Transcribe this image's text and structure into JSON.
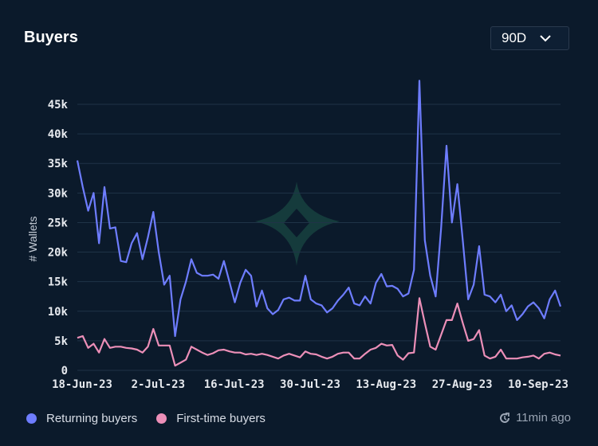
{
  "header": {
    "title": "Buyers",
    "range_label": "90D"
  },
  "footer": {
    "updated": "11min ago"
  },
  "colors": {
    "background": "#0b1a2b",
    "returning": "#6e7dff",
    "first_time": "#ec8fb8",
    "watermark": "#153b3c"
  },
  "icons": {
    "range_dropdown": "chevron-down-icon",
    "updated": "clock-refresh-icon",
    "watermark": "four-point-star-logo"
  },
  "chart_data": {
    "type": "line",
    "title": "",
    "ylabel": "# Wallets",
    "xlabel": "",
    "ylim": [
      0,
      45000
    ],
    "yticks": [
      0,
      5000,
      10000,
      15000,
      20000,
      25000,
      30000,
      35000,
      40000,
      45000
    ],
    "ytick_labels": [
      "0",
      "5k",
      "10k",
      "15k",
      "20k",
      "25k",
      "30k",
      "35k",
      "40k",
      "45k"
    ],
    "xtick_labels": [
      "18-Jun-23",
      "2-Jul-23",
      "16-Jul-23",
      "30-Jul-23",
      "13-Aug-23",
      "27-Aug-23",
      "10-Sep-23"
    ],
    "grid": true,
    "legend": "bottom-left",
    "x": [
      "18-Jun-23",
      "19-Jun-23",
      "20-Jun-23",
      "21-Jun-23",
      "22-Jun-23",
      "23-Jun-23",
      "24-Jun-23",
      "25-Jun-23",
      "26-Jun-23",
      "27-Jun-23",
      "28-Jun-23",
      "29-Jun-23",
      "30-Jun-23",
      "1-Jul-23",
      "2-Jul-23",
      "3-Jul-23",
      "4-Jul-23",
      "5-Jul-23",
      "6-Jul-23",
      "7-Jul-23",
      "8-Jul-23",
      "9-Jul-23",
      "10-Jul-23",
      "11-Jul-23",
      "12-Jul-23",
      "13-Jul-23",
      "14-Jul-23",
      "15-Jul-23",
      "16-Jul-23",
      "17-Jul-23",
      "18-Jul-23",
      "19-Jul-23",
      "20-Jul-23",
      "21-Jul-23",
      "22-Jul-23",
      "23-Jul-23",
      "24-Jul-23",
      "25-Jul-23",
      "26-Jul-23",
      "27-Jul-23",
      "28-Jul-23",
      "29-Jul-23",
      "30-Jul-23",
      "31-Jul-23",
      "1-Aug-23",
      "2-Aug-23",
      "3-Aug-23",
      "4-Aug-23",
      "5-Aug-23",
      "6-Aug-23",
      "7-Aug-23",
      "8-Aug-23",
      "9-Aug-23",
      "10-Aug-23",
      "11-Aug-23",
      "12-Aug-23",
      "13-Aug-23",
      "14-Aug-23",
      "15-Aug-23",
      "16-Aug-23",
      "17-Aug-23",
      "18-Aug-23",
      "19-Aug-23",
      "20-Aug-23",
      "21-Aug-23",
      "22-Aug-23",
      "23-Aug-23",
      "24-Aug-23",
      "25-Aug-23",
      "26-Aug-23",
      "27-Aug-23",
      "28-Aug-23",
      "29-Aug-23",
      "30-Aug-23",
      "31-Aug-23",
      "1-Sep-23",
      "2-Sep-23",
      "3-Sep-23",
      "4-Sep-23",
      "5-Sep-23",
      "6-Sep-23",
      "7-Sep-23",
      "8-Sep-23",
      "9-Sep-23",
      "10-Sep-23",
      "11-Sep-23",
      "12-Sep-23",
      "13-Sep-23",
      "14-Sep-23",
      "15-Sep-23"
    ],
    "series": [
      {
        "name": "Returning buyers",
        "color": "#6e7dff",
        "values": [
          35500,
          31000,
          27000,
          30000,
          21500,
          31000,
          24000,
          24200,
          18500,
          18300,
          21500,
          23200,
          18800,
          22500,
          26800,
          20000,
          14500,
          16000,
          5800,
          12000,
          15000,
          18800,
          16500,
          16000,
          16000,
          16200,
          15500,
          18500,
          15000,
          11500,
          14800,
          17000,
          16000,
          10800,
          13500,
          10500,
          9500,
          10200,
          12000,
          12300,
          11800,
          11800,
          16000,
          12000,
          11300,
          11000,
          9800,
          10500,
          11800,
          12800,
          14000,
          11300,
          11000,
          12500,
          11300,
          14800,
          16300,
          14200,
          14300,
          13800,
          12500,
          13000,
          17000,
          49000,
          22000,
          16000,
          12500,
          24000,
          38000,
          25000,
          31500,
          22000,
          12000,
          14500,
          21000,
          12800,
          12500,
          11500,
          12800,
          10000,
          11000,
          8500,
          9500,
          10800,
          11500,
          10500,
          8800,
          12000,
          13500,
          10800
        ]
      },
      {
        "name": "First-time buyers",
        "color": "#ec8fb8",
        "values": [
          5500,
          5800,
          3800,
          4500,
          3000,
          5300,
          3800,
          4000,
          4000,
          3800,
          3700,
          3500,
          3000,
          4000,
          7000,
          4200,
          4200,
          4200,
          800,
          1300,
          1800,
          4000,
          3500,
          3000,
          2600,
          2900,
          3400,
          3500,
          3200,
          3000,
          3000,
          2700,
          2800,
          2600,
          2800,
          2600,
          2300,
          2000,
          2500,
          2800,
          2500,
          2200,
          3200,
          2800,
          2700,
          2300,
          2000,
          2300,
          2800,
          3000,
          3000,
          2000,
          2000,
          2800,
          3500,
          3800,
          4500,
          4200,
          4300,
          2500,
          1800,
          2900,
          3000,
          12200,
          8000,
          4000,
          3500,
          6000,
          8500,
          8500,
          11300,
          8000,
          5000,
          5300,
          6800,
          2500,
          2000,
          2300,
          3500,
          2000,
          2000,
          2000,
          2200,
          2300,
          2500,
          2000,
          2800,
          3000,
          2700,
          2500
        ]
      }
    ]
  }
}
